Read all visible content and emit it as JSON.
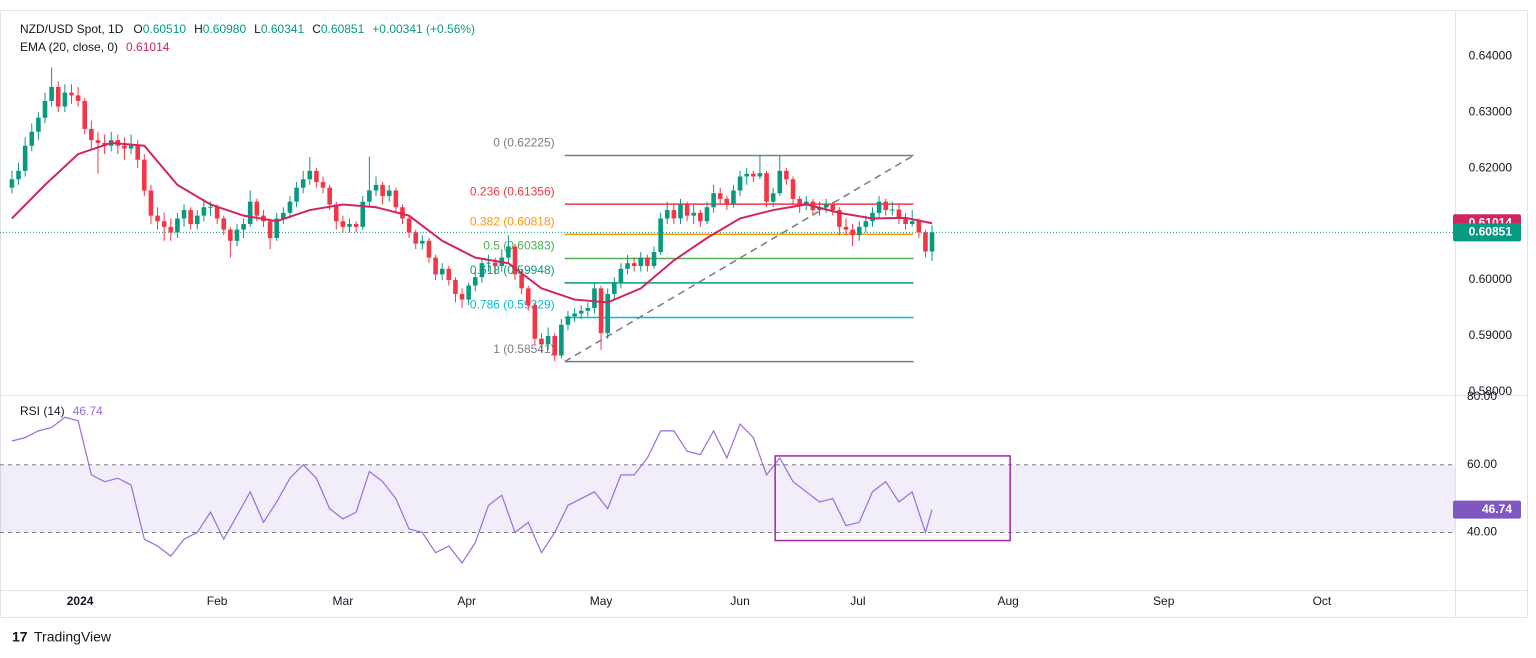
{
  "header": {
    "symbol": "NZD/USD Spot, 1D",
    "items": [
      {
        "k": "O",
        "v": "0.60510"
      },
      {
        "k": "H",
        "v": "0.60980"
      },
      {
        "k": "L",
        "v": "0.60341"
      },
      {
        "k": "C",
        "v": "0.60851"
      }
    ],
    "change": "+0.00341 (+0.56%)",
    "ema_label": "EMA (20, close, 0)"
  },
  "footer": "TradingView",
  "chart_data": [
    {
      "type": "candlestick",
      "up_color": "#089981",
      "down_color": "#f23645",
      "xlim": [
        -1.8,
        218
      ],
      "xticks": [
        {
          "value": 10.3,
          "label": "2024"
        },
        {
          "value": 31,
          "label": "Feb"
        },
        {
          "value": 50,
          "label": "Mar"
        },
        {
          "value": 68.7,
          "label": "Apr"
        },
        {
          "value": 89,
          "label": "May"
        },
        {
          "value": 110,
          "label": "Jun"
        },
        {
          "value": 127.8,
          "label": "Jul"
        },
        {
          "value": 150.5,
          "label": "Aug"
        },
        {
          "value": 174,
          "label": "Sep"
        },
        {
          "value": 197.9,
          "label": "Oct"
        }
      ],
      "ylim": [
        0.5798,
        0.6479
      ],
      "yticks": [
        {
          "value": 0.64,
          "label": "0.64000"
        },
        {
          "value": 0.63,
          "label": "0.63000"
        },
        {
          "value": 0.62,
          "label": "0.62000"
        },
        {
          "value": 0.61,
          "label": "0.61000"
        },
        {
          "value": 0.6,
          "label": "0.60000"
        },
        {
          "value": 0.59,
          "label": "0.59000"
        },
        {
          "value": 0.58,
          "label": "0.58000"
        }
      ],
      "last_close": 0.60851,
      "ohlc": [
        [
          0.6165,
          0.6195,
          0.6155,
          0.618
        ],
        [
          0.618,
          0.621,
          0.617,
          0.6195
        ],
        [
          0.6195,
          0.6255,
          0.6185,
          0.624
        ],
        [
          0.624,
          0.628,
          0.623,
          0.6265
        ],
        [
          0.6265,
          0.63,
          0.625,
          0.629
        ],
        [
          0.629,
          0.6335,
          0.628,
          0.632
        ],
        [
          0.632,
          0.638,
          0.631,
          0.6345
        ],
        [
          0.6345,
          0.6355,
          0.63,
          0.631
        ],
        [
          0.631,
          0.635,
          0.63,
          0.6335
        ],
        [
          0.6335,
          0.635,
          0.6315,
          0.633
        ],
        [
          0.633,
          0.6345,
          0.631,
          0.632
        ],
        [
          0.632,
          0.6325,
          0.626,
          0.627
        ],
        [
          0.627,
          0.6285,
          0.6235,
          0.625
        ],
        [
          0.625,
          0.6265,
          0.619,
          0.6245
        ],
        [
          0.6245,
          0.626,
          0.6225,
          0.624
        ],
        [
          0.624,
          0.6265,
          0.623,
          0.625
        ],
        [
          0.625,
          0.626,
          0.6225,
          0.624
        ],
        [
          0.624,
          0.6255,
          0.6215,
          0.6235
        ],
        [
          0.6235,
          0.626,
          0.6225,
          0.624
        ],
        [
          0.624,
          0.625,
          0.62,
          0.6215
        ],
        [
          0.6215,
          0.6225,
          0.615,
          0.616
        ],
        [
          0.616,
          0.617,
          0.61,
          0.6115
        ],
        [
          0.6115,
          0.613,
          0.609,
          0.6105
        ],
        [
          0.6105,
          0.612,
          0.607,
          0.6095
        ],
        [
          0.6095,
          0.611,
          0.607,
          0.6085
        ],
        [
          0.6085,
          0.612,
          0.6075,
          0.611
        ],
        [
          0.611,
          0.6135,
          0.6095,
          0.6125
        ],
        [
          0.6125,
          0.613,
          0.609,
          0.61
        ],
        [
          0.61,
          0.6125,
          0.609,
          0.6115
        ],
        [
          0.6115,
          0.6145,
          0.6105,
          0.613
        ],
        [
          0.613,
          0.614,
          0.6115,
          0.6131
        ],
        [
          0.6131,
          0.6135,
          0.61,
          0.611
        ],
        [
          0.611,
          0.6115,
          0.608,
          0.609
        ],
        [
          0.609,
          0.6095,
          0.604,
          0.607
        ],
        [
          0.607,
          0.61,
          0.606,
          0.609
        ],
        [
          0.609,
          0.611,
          0.6075,
          0.61
        ],
        [
          0.61,
          0.616,
          0.6095,
          0.614
        ],
        [
          0.614,
          0.6145,
          0.6105,
          0.6115
        ],
        [
          0.6115,
          0.6125,
          0.6095,
          0.6105
        ],
        [
          0.6105,
          0.611,
          0.6055,
          0.6075
        ],
        [
          0.6075,
          0.612,
          0.607,
          0.611
        ],
        [
          0.611,
          0.613,
          0.61,
          0.612
        ],
        [
          0.612,
          0.615,
          0.611,
          0.614
        ],
        [
          0.614,
          0.6175,
          0.613,
          0.6165
        ],
        [
          0.6165,
          0.6195,
          0.6155,
          0.618
        ],
        [
          0.618,
          0.622,
          0.617,
          0.6195
        ],
        [
          0.6195,
          0.62,
          0.6165,
          0.6175
        ],
        [
          0.6175,
          0.6185,
          0.6155,
          0.6165
        ],
        [
          0.6165,
          0.617,
          0.6125,
          0.6135
        ],
        [
          0.6135,
          0.614,
          0.609,
          0.6105
        ],
        [
          0.6105,
          0.6115,
          0.6085,
          0.6095
        ],
        [
          0.6095,
          0.611,
          0.6085,
          0.61
        ],
        [
          0.61,
          0.6105,
          0.6085,
          0.6095
        ],
        [
          0.6095,
          0.615,
          0.609,
          0.614
        ],
        [
          0.614,
          0.622,
          0.613,
          0.616
        ],
        [
          0.616,
          0.6185,
          0.615,
          0.617
        ],
        [
          0.617,
          0.6175,
          0.6135,
          0.615
        ],
        [
          0.615,
          0.617,
          0.614,
          0.616
        ],
        [
          0.616,
          0.6165,
          0.612,
          0.613
        ],
        [
          0.613,
          0.6135,
          0.61,
          0.611
        ],
        [
          0.611,
          0.6115,
          0.6075,
          0.6085
        ],
        [
          0.6085,
          0.609,
          0.6055,
          0.6065
        ],
        [
          0.6065,
          0.608,
          0.6055,
          0.607
        ],
        [
          0.607,
          0.6075,
          0.603,
          0.604
        ],
        [
          0.604,
          0.6045,
          0.6,
          0.601
        ],
        [
          0.601,
          0.603,
          0.6,
          0.602
        ],
        [
          0.602,
          0.6025,
          0.599,
          0.6
        ],
        [
          0.6,
          0.6005,
          0.596,
          0.5975
        ],
        [
          0.5975,
          0.5985,
          0.595,
          0.5965
        ],
        [
          0.5965,
          0.5995,
          0.5955,
          0.599
        ],
        [
          0.599,
          0.6015,
          0.598,
          0.6005
        ],
        [
          0.6005,
          0.604,
          0.5995,
          0.603
        ],
        [
          0.603,
          0.6045,
          0.6015,
          0.6031
        ],
        [
          0.6031,
          0.604,
          0.601,
          0.6025
        ],
        [
          0.6025,
          0.6055,
          0.6015,
          0.604
        ],
        [
          0.604,
          0.608,
          0.603,
          0.606
        ],
        [
          0.606,
          0.6065,
          0.6,
          0.601
        ],
        [
          0.601,
          0.602,
          0.5975,
          0.5985
        ],
        [
          0.5985,
          0.599,
          0.5945,
          0.5955
        ],
        [
          0.5955,
          0.596,
          0.5885,
          0.5895
        ],
        [
          0.5895,
          0.5905,
          0.587,
          0.5885
        ],
        [
          0.5885,
          0.5915,
          0.5875,
          0.59
        ],
        [
          0.59,
          0.5905,
          0.5855,
          0.5865
        ],
        [
          0.5865,
          0.593,
          0.586,
          0.592
        ],
        [
          0.592,
          0.5945,
          0.591,
          0.5935
        ],
        [
          0.5935,
          0.595,
          0.5925,
          0.594
        ],
        [
          0.594,
          0.5955,
          0.593,
          0.5945
        ],
        [
          0.5945,
          0.596,
          0.5935,
          0.595
        ],
        [
          0.595,
          0.5995,
          0.594,
          0.5985
        ],
        [
          0.5985,
          0.599,
          0.5875,
          0.5905
        ],
        [
          0.5905,
          0.5985,
          0.5895,
          0.5975
        ],
        [
          0.5975,
          0.6005,
          0.5965,
          0.5995
        ],
        [
          0.5995,
          0.603,
          0.5985,
          0.602
        ],
        [
          0.602,
          0.6045,
          0.601,
          0.603
        ],
        [
          0.603,
          0.604,
          0.6015,
          0.6025
        ],
        [
          0.6025,
          0.605,
          0.6015,
          0.604
        ],
        [
          0.604,
          0.6045,
          0.6015,
          0.6025
        ],
        [
          0.6025,
          0.606,
          0.602,
          0.605
        ],
        [
          0.605,
          0.612,
          0.6045,
          0.611
        ],
        [
          0.611,
          0.614,
          0.61,
          0.6125
        ],
        [
          0.6125,
          0.6135,
          0.61,
          0.611
        ],
        [
          0.611,
          0.6145,
          0.61,
          0.6135
        ],
        [
          0.6135,
          0.614,
          0.6105,
          0.6115
        ],
        [
          0.6115,
          0.6135,
          0.61,
          0.612
        ],
        [
          0.612,
          0.6125,
          0.6095,
          0.6105
        ],
        [
          0.6105,
          0.614,
          0.61,
          0.613
        ],
        [
          0.613,
          0.617,
          0.612,
          0.6155
        ],
        [
          0.6155,
          0.6165,
          0.6135,
          0.6145
        ],
        [
          0.6145,
          0.615,
          0.6125,
          0.6135
        ],
        [
          0.6135,
          0.617,
          0.613,
          0.616
        ],
        [
          0.616,
          0.6195,
          0.615,
          0.6185
        ],
        [
          0.6185,
          0.62,
          0.617,
          0.619
        ],
        [
          0.619,
          0.6195,
          0.6175,
          0.6185
        ],
        [
          0.6185,
          0.6222,
          0.618,
          0.6191
        ],
        [
          0.6191,
          0.6195,
          0.613,
          0.614
        ],
        [
          0.614,
          0.6165,
          0.613,
          0.6155
        ],
        [
          0.6155,
          0.6222,
          0.615,
          0.6195
        ],
        [
          0.6195,
          0.62,
          0.617,
          0.618
        ],
        [
          0.618,
          0.6185,
          0.6135,
          0.6145
        ],
        [
          0.6145,
          0.615,
          0.612,
          0.6135
        ],
        [
          0.6135,
          0.615,
          0.6125,
          0.614
        ],
        [
          0.614,
          0.6145,
          0.6115,
          0.6125
        ],
        [
          0.6125,
          0.614,
          0.6115,
          0.613
        ],
        [
          0.613,
          0.6145,
          0.612,
          0.6135
        ],
        [
          0.6135,
          0.614,
          0.6115,
          0.6125
        ],
        [
          0.6125,
          0.613,
          0.608,
          0.6095
        ],
        [
          0.6095,
          0.611,
          0.608,
          0.609
        ],
        [
          0.609,
          0.61,
          0.606,
          0.608
        ],
        [
          0.608,
          0.6105,
          0.607,
          0.6095
        ],
        [
          0.6095,
          0.6115,
          0.6085,
          0.6105
        ],
        [
          0.6105,
          0.613,
          0.6095,
          0.612
        ],
        [
          0.612,
          0.615,
          0.611,
          0.614
        ],
        [
          0.614,
          0.6145,
          0.6115,
          0.6125
        ],
        [
          0.6125,
          0.614,
          0.6115,
          0.6126
        ],
        [
          0.6126,
          0.6135,
          0.61,
          0.611
        ],
        [
          0.611,
          0.612,
          0.609,
          0.61
        ],
        [
          0.61,
          0.6125,
          0.6095,
          0.6105
        ],
        [
          0.6105,
          0.611,
          0.6075,
          0.6085
        ],
        [
          0.6085,
          0.609,
          0.604,
          0.6051
        ],
        [
          0.6051,
          0.6098,
          0.6034,
          0.6085
        ]
      ],
      "ema": {
        "color": "#d0255f",
        "last": 0.61014,
        "x": [
          0,
          5,
          10,
          15,
          20,
          25,
          30,
          35,
          40,
          45,
          50,
          55,
          60,
          65,
          70,
          75,
          80,
          85,
          90,
          95,
          100,
          105,
          110,
          115,
          120,
          125,
          130,
          135,
          139
        ],
        "values": [
          0.611,
          0.617,
          0.6225,
          0.6245,
          0.624,
          0.617,
          0.6135,
          0.6115,
          0.6105,
          0.6125,
          0.6135,
          0.613,
          0.6115,
          0.607,
          0.604,
          0.603,
          0.5985,
          0.5965,
          0.596,
          0.5985,
          0.6035,
          0.6075,
          0.611,
          0.6125,
          0.6135,
          0.612,
          0.611,
          0.6111,
          0.61014
        ]
      },
      "fib": {
        "x_range": [
          83.5,
          136.2
        ],
        "levels": [
          {
            "value": 0.62225,
            "label": "0 (0.62225)",
            "color": "#787b86"
          },
          {
            "value": 0.61356,
            "label": "0.236 (0.61356)",
            "color": "#f23645"
          },
          {
            "value": 0.60818,
            "label": "0.382 (0.60818)",
            "color": "#ff9800"
          },
          {
            "value": 0.60383,
            "label": "0.5 (0.60383)",
            "color": "#4caf50"
          },
          {
            "value": 0.59948,
            "label": "0.618 (0.59948)",
            "color": "#089981"
          },
          {
            "value": 0.59329,
            "label": "0.786 (0.59329)",
            "color": "#00bcd4"
          },
          {
            "value": 0.58541,
            "label": "1 (0.58541)",
            "color": "#787b86"
          }
        ]
      },
      "trend": {
        "x": [
          83.5,
          136.2
        ],
        "values": [
          0.58541,
          0.62225
        ]
      }
    },
    {
      "type": "line",
      "title": "RSI (14)",
      "color": "#9c6ade",
      "last": 46.74,
      "ylim": [
        23,
        80
      ],
      "yticks": [
        {
          "value": 80,
          "label": "80.00"
        },
        {
          "value": 60,
          "label": "60.00"
        },
        {
          "value": 40,
          "label": "40.00"
        }
      ],
      "band": [
        40,
        60
      ],
      "x": [
        0,
        2,
        4,
        6,
        8,
        10,
        12,
        14,
        16,
        18,
        20,
        22,
        24,
        26,
        28,
        30,
        32,
        34,
        36,
        38,
        40,
        42,
        44,
        46,
        48,
        50,
        52,
        54,
        56,
        58,
        60,
        62,
        64,
        66,
        68,
        70,
        72,
        74,
        76,
        78,
        80,
        82,
        84,
        86,
        88,
        90,
        92,
        94,
        96,
        98,
        100,
        102,
        104,
        106,
        108,
        110,
        112,
        114,
        116,
        118,
        120,
        122,
        124,
        126,
        128,
        130,
        132,
        134,
        136,
        138,
        139
      ],
      "values": [
        67,
        68,
        70,
        71,
        74,
        73,
        57,
        55,
        56,
        54,
        38,
        36,
        33,
        38,
        40,
        46,
        38,
        45,
        52,
        43,
        49,
        56,
        60,
        56,
        47,
        44,
        46,
        58,
        55,
        50,
        41,
        40,
        34,
        36,
        31,
        37,
        48,
        51,
        40,
        43,
        34,
        40,
        48,
        50,
        52,
        47,
        57,
        57,
        62,
        70,
        70,
        64,
        63,
        70,
        62,
        72,
        68,
        57,
        62,
        55,
        52,
        49,
        50,
        42,
        43,
        52,
        55,
        49,
        52,
        40,
        46.74
      ],
      "box": {
        "x": [
          115.3,
          150.8
        ],
        "values": [
          62.6,
          37.6
        ],
        "color": "#9c27b0"
      }
    }
  ]
}
